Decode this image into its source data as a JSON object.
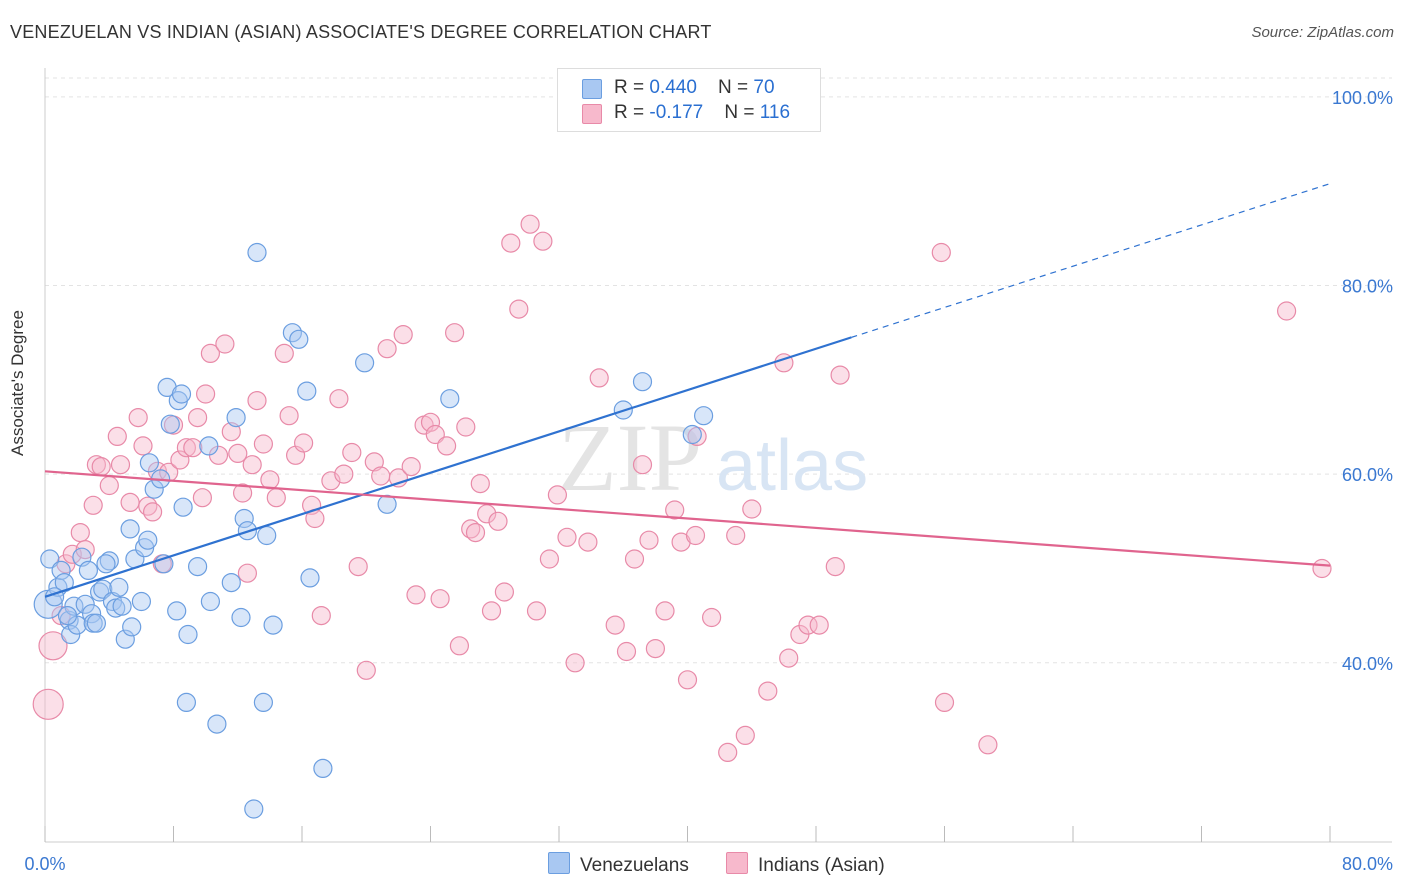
{
  "header": {
    "title": "VENEZUELAN VS INDIAN (ASIAN) ASSOCIATE'S DEGREE CORRELATION CHART",
    "source": "Source: ZipAtlas.com"
  },
  "watermark": {
    "zip": "ZIP",
    "atlas": "atlas"
  },
  "legend": {
    "rows": [
      {
        "r_label": "R = ",
        "r_value": "0.440",
        "n_label": "N = ",
        "n_value": "70",
        "color": "#a9c8f2"
      },
      {
        "r_label": "R = ",
        "r_value": "-0.177",
        "n_label": "N = ",
        "n_value": "116",
        "color": "#f7b9cc"
      }
    ]
  },
  "bottom_legend": {
    "venezuelans": "Venezuelans",
    "indians": "Indians (Asian)"
  },
  "colors": {
    "venezuelan_fill": "#a9c8f2",
    "venezuelan_stroke": "#6b9ee0",
    "venezuelan_line": "#2f72d0",
    "indian_fill": "#f7b9cc",
    "indian_stroke": "#e88aa8",
    "indian_line": "#e0648e",
    "tick_label": "#3a78d1"
  },
  "chart_data": {
    "type": "scatter",
    "title": "VENEZUELAN VS INDIAN (ASIAN) ASSOCIATE'S DEGREE CORRELATION CHART",
    "xlabel": "",
    "ylabel": "Associate's Degree",
    "xlim": [
      0,
      80
    ],
    "ylim": [
      21,
      102
    ],
    "x_tick_labels": [
      "0.0%",
      "80.0%"
    ],
    "y_ticks": [
      40,
      60,
      80,
      100
    ],
    "y_tick_labels": [
      "40.0%",
      "60.0%",
      "80.0%",
      "100.0%"
    ],
    "grid": true,
    "legend_position": "top-center",
    "series": [
      {
        "name": "Venezuelans",
        "r": 0.44,
        "n": 70,
        "trend": {
          "x0": 0,
          "y0": 47.0,
          "x1": 50.2,
          "y1": 74.5,
          "dashed_to_x": 80,
          "dashed_to_y": 90.8
        },
        "points": [
          [
            0.2,
            46.2
          ],
          [
            0.3,
            51.0
          ],
          [
            0.8,
            48.0
          ],
          [
            1.0,
            49.8
          ],
          [
            1.2,
            48.5
          ],
          [
            1.5,
            44.5
          ],
          [
            1.6,
            43.0
          ],
          [
            1.8,
            46.0
          ],
          [
            2.0,
            44.0
          ],
          [
            2.3,
            51.2
          ],
          [
            2.5,
            46.2
          ],
          [
            2.7,
            49.8
          ],
          [
            2.9,
            45.2
          ],
          [
            3.0,
            44.2
          ],
          [
            3.2,
            44.2
          ],
          [
            3.4,
            47.5
          ],
          [
            3.6,
            47.8
          ],
          [
            4.0,
            50.8
          ],
          [
            4.2,
            46.5
          ],
          [
            4.4,
            45.8
          ],
          [
            4.6,
            48.0
          ],
          [
            4.8,
            46.0
          ],
          [
            5.0,
            42.5
          ],
          [
            5.3,
            54.2
          ],
          [
            5.4,
            43.8
          ],
          [
            5.6,
            51.0
          ],
          [
            6.0,
            46.5
          ],
          [
            6.2,
            52.2
          ],
          [
            6.4,
            53.0
          ],
          [
            6.5,
            61.2
          ],
          [
            6.8,
            58.4
          ],
          [
            7.2,
            59.5
          ],
          [
            7.4,
            50.5
          ],
          [
            7.6,
            69.2
          ],
          [
            7.8,
            65.3
          ],
          [
            8.2,
            45.5
          ],
          [
            8.3,
            67.8
          ],
          [
            8.5,
            68.5
          ],
          [
            8.6,
            56.5
          ],
          [
            8.9,
            43.0
          ],
          [
            8.8,
            35.8
          ],
          [
            9.5,
            50.2
          ],
          [
            10.2,
            63.0
          ],
          [
            10.3,
            46.5
          ],
          [
            10.7,
            33.5
          ],
          [
            11.6,
            48.5
          ],
          [
            11.9,
            66.0
          ],
          [
            12.2,
            44.8
          ],
          [
            12.4,
            55.3
          ],
          [
            12.6,
            54.0
          ],
          [
            13.2,
            83.5
          ],
          [
            13.6,
            35.8
          ],
          [
            13.8,
            53.5
          ],
          [
            14.2,
            44.0
          ],
          [
            15.4,
            75.0
          ],
          [
            15.8,
            74.3
          ],
          [
            16.3,
            68.8
          ],
          [
            16.5,
            49.0
          ],
          [
            17.3,
            28.8
          ],
          [
            13.0,
            24.5
          ],
          [
            19.9,
            71.8
          ],
          [
            21.3,
            56.8
          ],
          [
            25.2,
            68.0
          ],
          [
            36.0,
            66.8
          ],
          [
            37.2,
            69.8
          ],
          [
            40.3,
            64.2
          ],
          [
            41.0,
            66.2
          ],
          [
            0.6,
            47.0
          ],
          [
            3.8,
            50.5
          ],
          [
            1.4,
            45.0
          ]
        ]
      },
      {
        "name": "Indians (Asian)",
        "r": -0.177,
        "n": 116,
        "trend": {
          "x0": 0,
          "y0": 60.3,
          "x1": 80,
          "y1": 50.3
        },
        "points": [
          [
            0.2,
            35.6
          ],
          [
            0.5,
            41.8
          ],
          [
            1.0,
            45.0
          ],
          [
            1.3,
            50.5
          ],
          [
            1.7,
            51.5
          ],
          [
            2.2,
            53.8
          ],
          [
            2.5,
            52.0
          ],
          [
            3.0,
            56.7
          ],
          [
            3.2,
            61.0
          ],
          [
            3.5,
            60.8
          ],
          [
            4.0,
            58.8
          ],
          [
            4.5,
            64.0
          ],
          [
            4.7,
            61.0
          ],
          [
            5.3,
            57.0
          ],
          [
            5.8,
            66.0
          ],
          [
            6.1,
            63.0
          ],
          [
            6.4,
            56.6
          ],
          [
            6.7,
            56.0
          ],
          [
            7.0,
            60.3
          ],
          [
            7.3,
            50.5
          ],
          [
            7.7,
            60.2
          ],
          [
            8.0,
            65.2
          ],
          [
            8.4,
            61.5
          ],
          [
            8.8,
            62.8
          ],
          [
            9.5,
            66.0
          ],
          [
            9.8,
            57.5
          ],
          [
            10.0,
            68.5
          ],
          [
            10.3,
            72.8
          ],
          [
            10.8,
            62.0
          ],
          [
            11.2,
            73.8
          ],
          [
            11.6,
            64.5
          ],
          [
            12.0,
            62.2
          ],
          [
            12.3,
            58.0
          ],
          [
            12.6,
            49.5
          ],
          [
            12.9,
            61.0
          ],
          [
            13.2,
            67.8
          ],
          [
            13.6,
            63.2
          ],
          [
            14.0,
            59.4
          ],
          [
            14.4,
            57.5
          ],
          [
            14.9,
            72.8
          ],
          [
            15.2,
            66.2
          ],
          [
            15.6,
            62.0
          ],
          [
            16.1,
            63.3
          ],
          [
            16.6,
            56.7
          ],
          [
            16.8,
            55.3
          ],
          [
            17.2,
            45.0
          ],
          [
            17.8,
            59.3
          ],
          [
            18.3,
            68.0
          ],
          [
            18.6,
            60.0
          ],
          [
            19.1,
            62.3
          ],
          [
            19.5,
            50.2
          ],
          [
            20.0,
            39.2
          ],
          [
            20.5,
            61.3
          ],
          [
            20.9,
            59.8
          ],
          [
            21.3,
            73.3
          ],
          [
            22.0,
            59.6
          ],
          [
            22.3,
            74.8
          ],
          [
            22.8,
            60.8
          ],
          [
            23.1,
            47.2
          ],
          [
            23.6,
            65.2
          ],
          [
            24.0,
            65.5
          ],
          [
            24.3,
            64.2
          ],
          [
            24.6,
            46.8
          ],
          [
            25.0,
            63.0
          ],
          [
            25.5,
            75.0
          ],
          [
            25.8,
            41.8
          ],
          [
            26.2,
            65.0
          ],
          [
            26.5,
            54.2
          ],
          [
            26.8,
            53.8
          ],
          [
            27.1,
            59.0
          ],
          [
            27.5,
            55.8
          ],
          [
            27.8,
            45.5
          ],
          [
            28.2,
            55.0
          ],
          [
            28.6,
            47.5
          ],
          [
            29.0,
            84.5
          ],
          [
            29.5,
            77.5
          ],
          [
            30.2,
            86.5
          ],
          [
            30.6,
            45.5
          ],
          [
            31.0,
            84.7
          ],
          [
            31.4,
            51.0
          ],
          [
            31.9,
            57.8
          ],
          [
            32.5,
            53.3
          ],
          [
            33.0,
            40.0
          ],
          [
            33.8,
            52.8
          ],
          [
            34.5,
            70.2
          ],
          [
            35.5,
            44.0
          ],
          [
            36.2,
            41.2
          ],
          [
            36.7,
            51.0
          ],
          [
            37.2,
            61.0
          ],
          [
            37.6,
            53.0
          ],
          [
            38.0,
            41.5
          ],
          [
            38.6,
            45.5
          ],
          [
            39.2,
            56.2
          ],
          [
            39.6,
            52.8
          ],
          [
            40.0,
            38.2
          ],
          [
            40.5,
            53.5
          ],
          [
            41.5,
            44.8
          ],
          [
            42.5,
            30.5
          ],
          [
            43.0,
            53.5
          ],
          [
            43.6,
            32.3
          ],
          [
            44.0,
            56.3
          ],
          [
            45.0,
            37.0
          ],
          [
            46.0,
            71.8
          ],
          [
            46.3,
            40.5
          ],
          [
            47.0,
            43.0
          ],
          [
            47.5,
            44.0
          ],
          [
            48.2,
            44.0
          ],
          [
            49.2,
            50.2
          ],
          [
            49.5,
            70.5
          ],
          [
            55.8,
            83.5
          ],
          [
            56.0,
            35.8
          ],
          [
            58.7,
            31.3
          ],
          [
            77.3,
            77.3
          ],
          [
            79.5,
            50.0
          ],
          [
            9.2,
            62.8
          ],
          [
            40.6,
            64.0
          ]
        ]
      }
    ]
  }
}
